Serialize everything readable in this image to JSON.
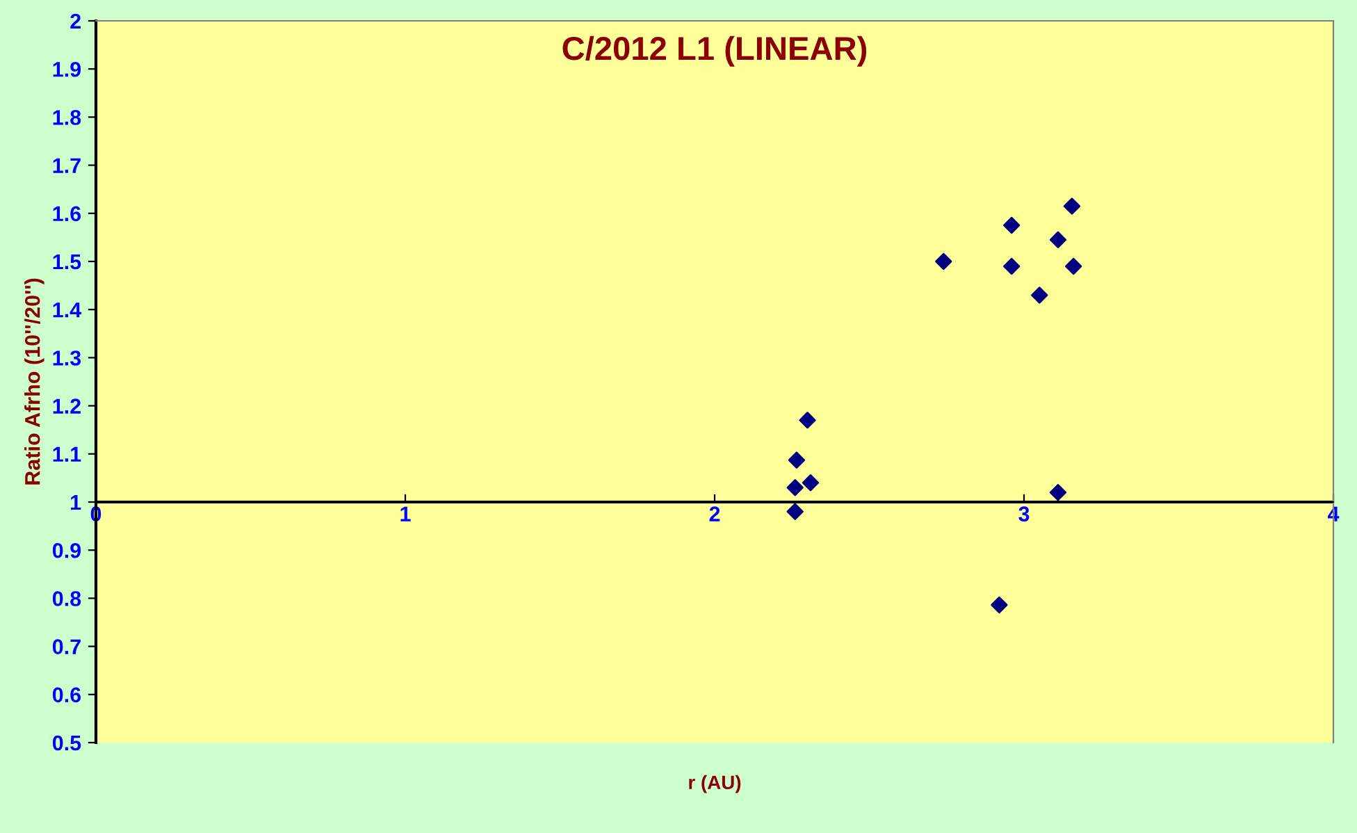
{
  "chart_data": {
    "type": "scatter",
    "title": "C/2012 L1 (LINEAR)",
    "xlabel": "r (AU)",
    "ylabel": "Ratio Afrho (10''/20'')",
    "x": [
      2.26,
      2.26,
      2.265,
      2.3,
      2.31,
      2.74,
      2.96,
      2.96,
      3.05,
      3.11,
      3.155,
      3.16,
      3.11,
      2.92
    ],
    "series": [
      {
        "color": "#000080",
        "values": [
          0.98,
          1.03,
          1.087,
          1.17,
          1.04,
          1.5,
          1.575,
          1.49,
          1.43,
          1.545,
          1.615,
          1.49,
          1.02,
          0.786
        ]
      }
    ],
    "xlim": [
      0,
      4
    ],
    "xticks": [
      0,
      1,
      2,
      3,
      4
    ],
    "ylim": [
      0.5,
      2
    ],
    "yticks": [
      0.5,
      0.6,
      0.7,
      0.8,
      0.9,
      1,
      1.1,
      1.2,
      1.3,
      1.4,
      1.5,
      1.6,
      1.7,
      1.8,
      1.9,
      2
    ],
    "ref_lines": [
      {
        "axis": "y",
        "value": 1,
        "color": "#000000"
      }
    ],
    "marker": "diamond",
    "grid": false,
    "legend": false
  }
}
